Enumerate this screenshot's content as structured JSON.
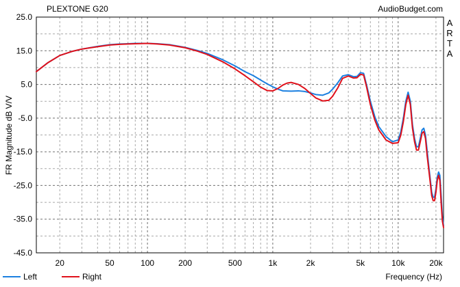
{
  "chart_data": {
    "type": "line",
    "title": "PLEXTONE G20",
    "watermark": "AudioBudget.com",
    "side_label": [
      "A",
      "R",
      "T",
      "A"
    ],
    "xlabel": "Frequency (Hz)",
    "ylabel": "FR Magnitude dB V/V",
    "x_scale": "log",
    "xlim": [
      13,
      23000
    ],
    "ylim": [
      -45,
      25
    ],
    "y_ticks": [
      25.0,
      15.0,
      5.0,
      -5.0,
      -15.0,
      -25.0,
      -35.0,
      -45.0
    ],
    "y_tick_labels": [
      "25.0",
      "15.0",
      "5.0",
      "-5.0",
      "-15.0",
      "-25.0",
      "-35.0",
      "-45.0"
    ],
    "x_ticks": [
      20,
      50,
      100,
      200,
      500,
      1000,
      2000,
      5000,
      10000,
      20000
    ],
    "x_tick_labels": [
      "20",
      "50",
      "100",
      "200",
      "500",
      "1k",
      "2k",
      "5k",
      "10k",
      "20k"
    ],
    "grid": true,
    "legend_position": "bottom-left",
    "series": [
      {
        "name": "Left",
        "color": "#1a7fe0",
        "x": [
          13,
          16,
          20,
          25,
          30,
          40,
          50,
          60,
          70,
          80,
          100,
          120,
          150,
          200,
          250,
          300,
          400,
          500,
          600,
          700,
          800,
          900,
          1000,
          1100,
          1200,
          1400,
          1600,
          1800,
          2000,
          2200,
          2500,
          2800,
          3000,
          3300,
          3600,
          4000,
          4400,
          4700,
          5000,
          5300,
          5600,
          6000,
          6500,
          7000,
          8000,
          9000,
          10000,
          10500,
          11000,
          11500,
          12000,
          12500,
          13000,
          13500,
          14000,
          14500,
          15000,
          15500,
          16000,
          16500,
          17000,
          17500,
          18000,
          18500,
          19000,
          19500,
          20000,
          20500,
          21000,
          21500,
          22000,
          22500,
          23000
        ],
        "y": [
          8.8,
          11.4,
          13.6,
          14.8,
          15.5,
          16.3,
          16.8,
          17.0,
          17.1,
          17.2,
          17.2,
          17.1,
          16.8,
          16.0,
          15.1,
          14.2,
          12.3,
          10.5,
          8.8,
          7.6,
          6.3,
          5.2,
          4.3,
          3.6,
          3.1,
          3.0,
          3.1,
          2.9,
          2.5,
          2.0,
          1.8,
          2.5,
          3.6,
          5.5,
          7.5,
          7.9,
          7.3,
          7.4,
          8.5,
          8.3,
          4.8,
          0.0,
          -4.5,
          -7.5,
          -10.5,
          -12.0,
          -11.5,
          -9.0,
          -5.0,
          0.0,
          2.7,
          0.0,
          -7.0,
          -11.0,
          -13.5,
          -13.5,
          -11.0,
          -8.5,
          -8.0,
          -10.0,
          -14.5,
          -19.0,
          -23.0,
          -27.0,
          -28.5,
          -28.5,
          -26.0,
          -22.5,
          -21.0,
          -22.0,
          -28.0,
          -34.0,
          -37.0
        ]
      },
      {
        "name": "Right",
        "color": "#e0101a",
        "x": [
          13,
          16,
          20,
          25,
          30,
          40,
          50,
          60,
          70,
          80,
          100,
          120,
          150,
          200,
          250,
          300,
          400,
          500,
          600,
          700,
          800,
          900,
          1000,
          1100,
          1200,
          1300,
          1400,
          1600,
          1800,
          2000,
          2200,
          2500,
          2800,
          3000,
          3300,
          3600,
          4000,
          4400,
          4700,
          5000,
          5300,
          5600,
          6000,
          6500,
          7000,
          8000,
          9000,
          10000,
          10500,
          11000,
          11500,
          12000,
          12500,
          13000,
          13500,
          14000,
          14500,
          15000,
          15500,
          16000,
          16500,
          17000,
          17500,
          18000,
          18500,
          19000,
          19500,
          20000,
          20500,
          21000,
          21500,
          22000,
          22500,
          23000
        ],
        "y": [
          8.8,
          11.4,
          13.6,
          14.8,
          15.5,
          16.2,
          16.7,
          16.9,
          17.0,
          17.1,
          17.2,
          17.0,
          16.7,
          15.9,
          14.9,
          13.9,
          11.7,
          9.6,
          7.6,
          5.8,
          4.2,
          3.2,
          3.1,
          3.8,
          4.8,
          5.4,
          5.6,
          5.0,
          3.8,
          2.3,
          1.0,
          0.1,
          0.3,
          1.5,
          4.0,
          6.8,
          7.5,
          6.9,
          7.0,
          8.0,
          7.8,
          4.2,
          -1.0,
          -5.5,
          -8.5,
          -11.5,
          -12.5,
          -12.3,
          -10.0,
          -6.0,
          -1.0,
          1.8,
          -1.0,
          -8.0,
          -12.0,
          -14.5,
          -14.5,
          -12.0,
          -9.5,
          -9.0,
          -11.0,
          -16.0,
          -20.0,
          -24.0,
          -28.0,
          -29.5,
          -29.5,
          -27.0,
          -23.5,
          -22.0,
          -23.5,
          -30.0,
          -35.5,
          -37.5
        ]
      }
    ]
  }
}
